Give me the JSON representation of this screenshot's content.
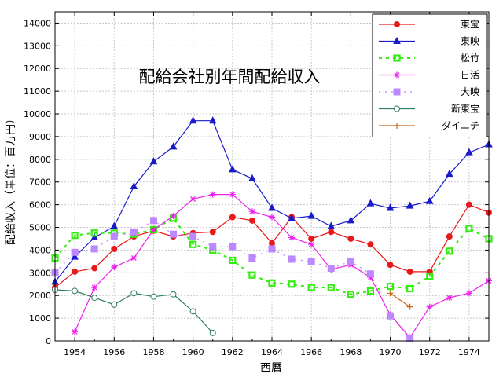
{
  "chart_data": {
    "type": "line",
    "title": "配給会社別年間配給収入",
    "xlabel": "西暦",
    "ylabel": "配給収入（単位：百万円）",
    "xlim": [
      1953,
      1975
    ],
    "ylim": [
      0,
      14500
    ],
    "x_ticks": [
      1954,
      1956,
      1958,
      1960,
      1962,
      1964,
      1966,
      1968,
      1970,
      1972,
      1974
    ],
    "y_ticks": [
      0,
      1000,
      2000,
      3000,
      4000,
      5000,
      6000,
      7000,
      8000,
      9000,
      10000,
      11000,
      12000,
      13000,
      14000
    ],
    "grid": true,
    "legend": "top-right",
    "series": [
      {
        "name": "東宝",
        "color": "#e8191a",
        "marker": "circle",
        "dash": "",
        "x": [
          1953,
          1954,
          1955,
          1956,
          1957,
          1958,
          1959,
          1960,
          1961,
          1962,
          1963,
          1964,
          1965,
          1966,
          1967,
          1968,
          1969,
          1970,
          1971,
          1972,
          1973,
          1974,
          1975
        ],
        "y": [
          2350,
          3050,
          3200,
          4050,
          4600,
          4850,
          4600,
          4750,
          4800,
          5450,
          5300,
          4300,
          5450,
          4500,
          4800,
          4500,
          4250,
          3350,
          3050,
          3050,
          4600,
          6000,
          5650
        ]
      },
      {
        "name": "東映",
        "color": "#1a1acb",
        "marker": "triangle",
        "dash": "",
        "x": [
          1953,
          1954,
          1955,
          1956,
          1957,
          1958,
          1959,
          1960,
          1961,
          1962,
          1963,
          1964,
          1965,
          1966,
          1967,
          1968,
          1969,
          1970,
          1971,
          1972,
          1973,
          1974,
          1975
        ],
        "y": [
          2600,
          3700,
          4550,
          5050,
          6800,
          7900,
          8550,
          9700,
          9700,
          7550,
          7150,
          5850,
          5400,
          5500,
          5050,
          5300,
          6050,
          5850,
          5950,
          6150,
          7350,
          8300,
          8650
        ]
      },
      {
        "name": "松竹",
        "color": "#33ee11",
        "marker": "square-open",
        "dash": "4,5",
        "x": [
          1953,
          1954,
          1955,
          1956,
          1957,
          1958,
          1959,
          1960,
          1961,
          1962,
          1963,
          1964,
          1965,
          1966,
          1967,
          1968,
          1969,
          1970,
          1971,
          1972,
          1973,
          1974,
          1975
        ],
        "y": [
          3650,
          4650,
          4750,
          4750,
          4700,
          4900,
          5400,
          4250,
          4000,
          3550,
          2900,
          2550,
          2500,
          2350,
          2350,
          2050,
          2200,
          2400,
          2300,
          2850,
          3950,
          4950,
          4500
        ]
      },
      {
        "name": "日活",
        "color": "#ee22ee",
        "marker": "star",
        "dash": "",
        "x": [
          1954,
          1955,
          1956,
          1957,
          1958,
          1959,
          1960,
          1961,
          1962,
          1963,
          1964,
          1965,
          1966,
          1967,
          1968,
          1969,
          1970,
          1971,
          1972,
          1973,
          1974,
          1975
        ],
        "y": [
          400,
          2350,
          3250,
          3650,
          4900,
          5500,
          6250,
          6450,
          6450,
          5700,
          5450,
          4550,
          4250,
          3150,
          3350,
          2800,
          1150,
          150,
          1500,
          1900,
          2100,
          2650
        ]
      },
      {
        "name": "大映",
        "color": "#bb88ff",
        "marker": "square-filled",
        "dash": "2,6",
        "x": [
          1953,
          1954,
          1955,
          1956,
          1957,
          1958,
          1959,
          1960,
          1961,
          1962,
          1963,
          1964,
          1965,
          1966,
          1967,
          1968,
          1969,
          1970,
          1971
        ],
        "y": [
          3000,
          3900,
          4050,
          4600,
          4800,
          5300,
          4700,
          4600,
          4150,
          4150,
          3650,
          4050,
          3600,
          3500,
          3200,
          3500,
          2950,
          1100,
          100
        ]
      },
      {
        "name": "新東宝",
        "color": "#2f7f5f",
        "marker": "circle-open",
        "dash": "",
        "x": [
          1953,
          1954,
          1955,
          1956,
          1957,
          1958,
          1959,
          1960,
          1961
        ],
        "y": [
          2250,
          2200,
          1900,
          1600,
          2100,
          1950,
          2050,
          1300,
          350
        ]
      },
      {
        "name": "ダイニチ",
        "color": "#c96a1e",
        "marker": "plus",
        "dash": "",
        "x": [
          1970,
          1971
        ],
        "y": [
          2100,
          1500
        ]
      }
    ]
  }
}
